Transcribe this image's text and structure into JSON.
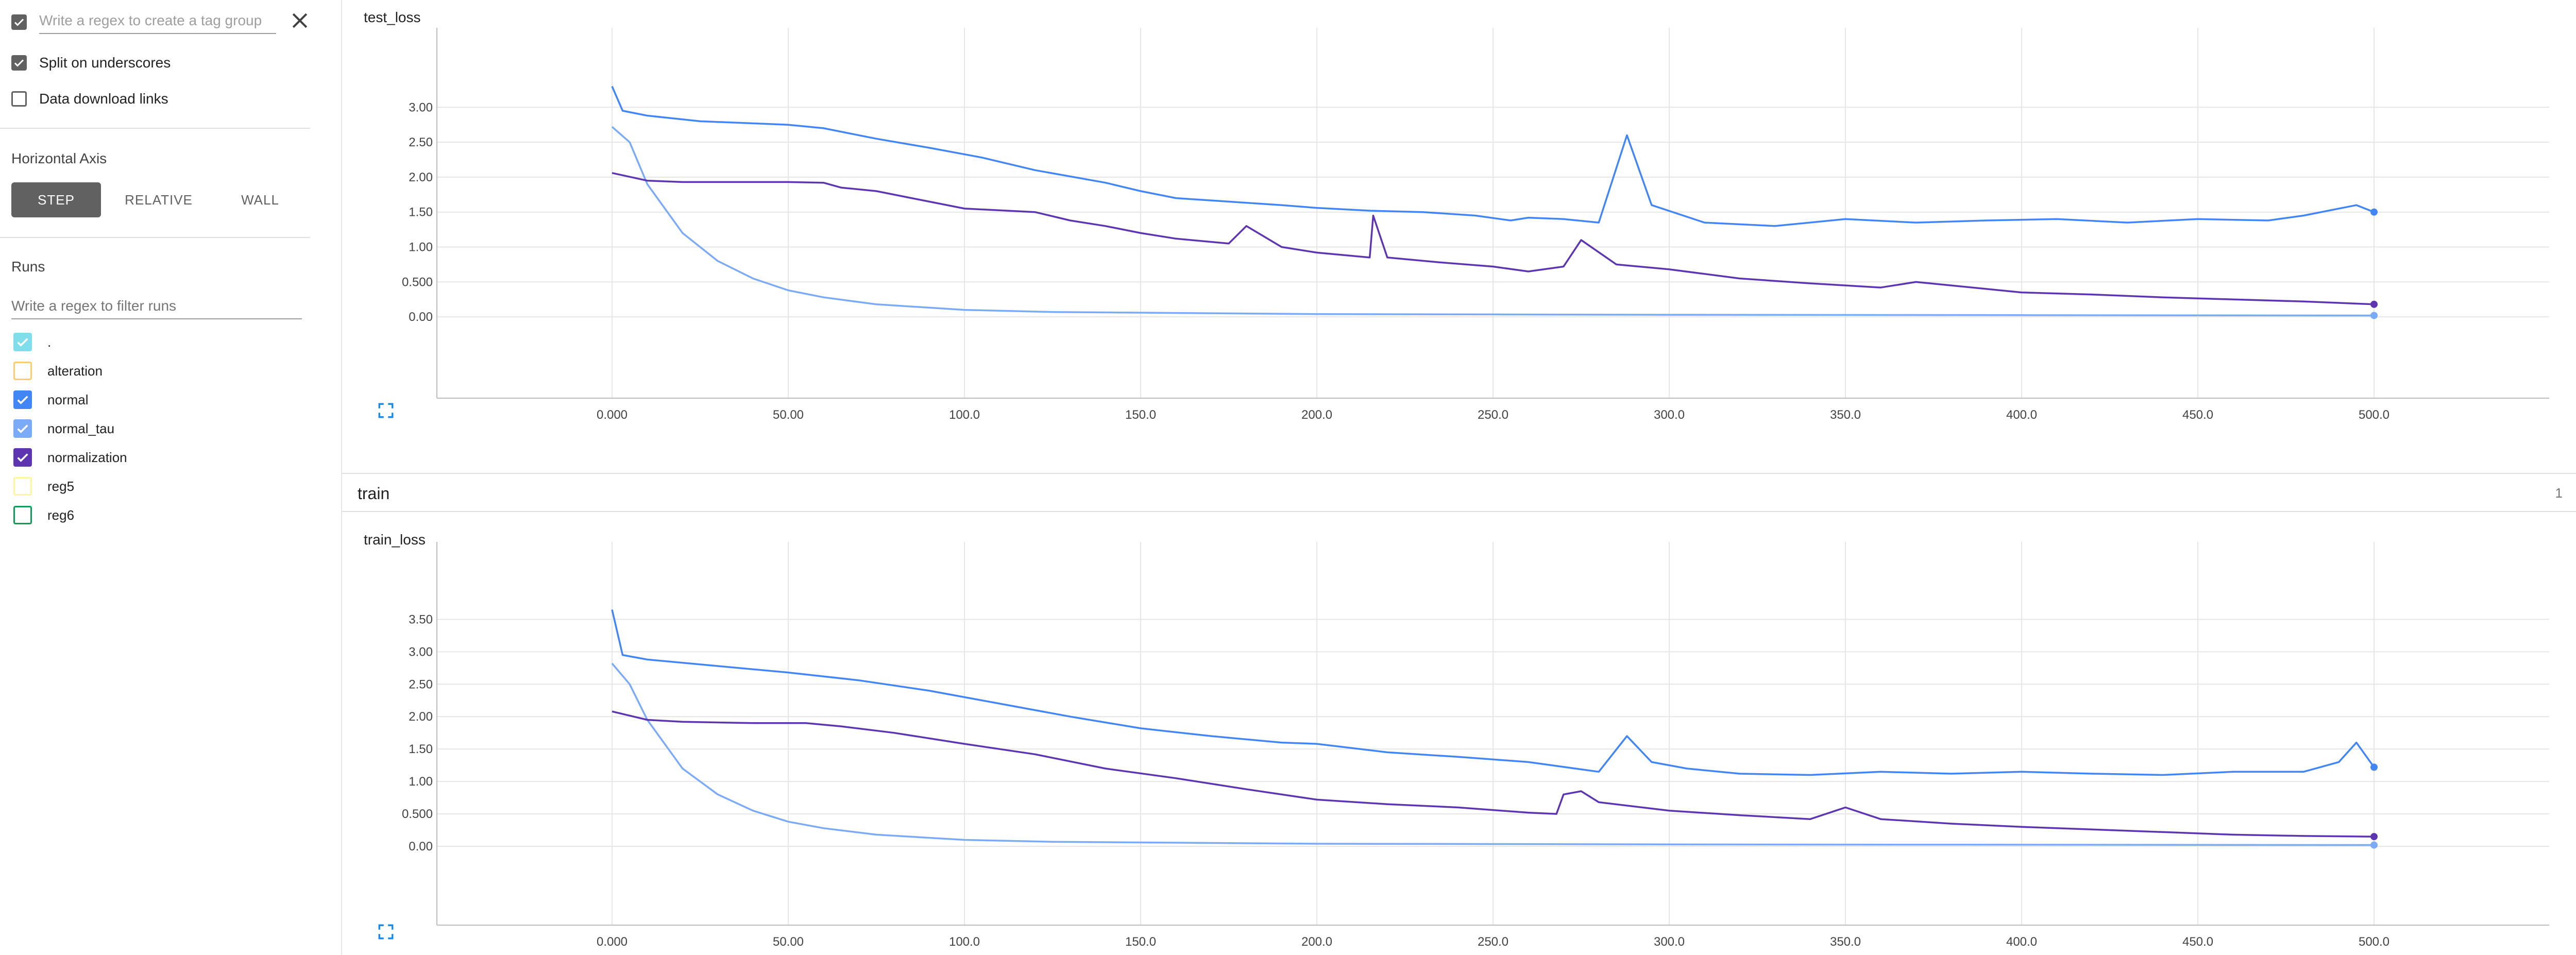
{
  "sidebar": {
    "tag_group": {
      "placeholder": "Write a regex to create a tag group",
      "checked": true
    },
    "split_underscores": {
      "label": "Split on underscores",
      "checked": true
    },
    "download_links": {
      "label": "Data download links",
      "checked": false
    },
    "horizontal_axis": {
      "title": "Horizontal Axis",
      "options": [
        "STEP",
        "RELATIVE",
        "WALL"
      ],
      "selected": "STEP"
    },
    "runs": {
      "title": "Runs",
      "filter_placeholder": "Write a regex to filter runs",
      "items": [
        {
          "label": ".",
          "color": "#80deea",
          "checked": true
        },
        {
          "label": "alteration",
          "color": "#ffca70",
          "checked": false
        },
        {
          "label": "normal",
          "color": "#4285f4",
          "checked": true
        },
        {
          "label": "normal_tau",
          "color": "#7baaf7",
          "checked": true
        },
        {
          "label": "normalization",
          "color": "#5e35b1",
          "checked": true
        },
        {
          "label": "reg5",
          "color": "#fff59d",
          "checked": false
        },
        {
          "label": "reg6",
          "color": "#0f9d58",
          "checked": false
        }
      ]
    }
  },
  "main": {
    "group": {
      "name": "train",
      "count": "1"
    }
  },
  "chart_data": [
    {
      "type": "line",
      "title": "test_loss",
      "xlabel": "",
      "ylabel": "",
      "xlim": [
        0,
        500
      ],
      "ylim": [
        -0.5,
        3.4
      ],
      "x_ticks": [
        "0.000",
        "50.00",
        "100.0",
        "150.0",
        "200.0",
        "250.0",
        "300.0",
        "350.0",
        "400.0",
        "450.0",
        "500.0"
      ],
      "y_ticks": [
        "0.00",
        "0.500",
        "1.00",
        "1.50",
        "2.00",
        "2.50",
        "3.00"
      ],
      "grid": true,
      "series": [
        {
          "color": "#4285f4",
          "x": [
            0,
            3,
            10,
            25,
            50,
            60,
            75,
            90,
            105,
            120,
            140,
            150,
            160,
            175,
            190,
            200,
            215,
            230,
            245,
            255,
            260,
            270,
            280,
            288,
            295,
            310,
            330,
            350,
            370,
            390,
            410,
            430,
            450,
            470,
            480,
            495,
            500
          ],
          "y": [
            3.3,
            2.95,
            2.88,
            2.8,
            2.75,
            2.7,
            2.55,
            2.42,
            2.28,
            2.1,
            1.92,
            1.8,
            1.7,
            1.65,
            1.6,
            1.56,
            1.52,
            1.5,
            1.45,
            1.38,
            1.42,
            1.4,
            1.35,
            2.6,
            1.6,
            1.35,
            1.3,
            1.4,
            1.35,
            1.38,
            1.4,
            1.35,
            1.4,
            1.38,
            1.45,
            1.6,
            1.5
          ]
        },
        {
          "color": "#7baaf7",
          "x": [
            0,
            5,
            10,
            20,
            30,
            40,
            50,
            60,
            75,
            100,
            125,
            150,
            200,
            250,
            300,
            400,
            500
          ],
          "y": [
            2.72,
            2.5,
            1.9,
            1.2,
            0.8,
            0.55,
            0.38,
            0.28,
            0.18,
            0.1,
            0.07,
            0.06,
            0.04,
            0.035,
            0.03,
            0.025,
            0.02
          ]
        },
        {
          "color": "#5e35b1",
          "x": [
            0,
            10,
            20,
            50,
            60,
            65,
            75,
            85,
            100,
            120,
            130,
            140,
            150,
            160,
            175,
            180,
            190,
            200,
            215,
            216,
            220,
            235,
            250,
            260,
            270,
            275,
            285,
            300,
            320,
            340,
            350,
            360,
            370,
            380,
            400,
            420,
            440,
            460,
            480,
            500
          ],
          "y": [
            2.06,
            1.95,
            1.93,
            1.93,
            1.92,
            1.85,
            1.8,
            1.7,
            1.55,
            1.5,
            1.38,
            1.3,
            1.2,
            1.12,
            1.05,
            1.3,
            1.0,
            0.92,
            0.85,
            1.45,
            0.85,
            0.78,
            0.72,
            0.65,
            0.72,
            1.1,
            0.75,
            0.68,
            0.55,
            0.48,
            0.45,
            0.42,
            0.5,
            0.45,
            0.35,
            0.32,
            0.28,
            0.25,
            0.22,
            0.18
          ]
        }
      ]
    },
    {
      "type": "line",
      "title": "train_loss",
      "xlabel": "",
      "ylabel": "",
      "xlim": [
        0,
        500
      ],
      "ylim": [
        -0.5,
        3.9
      ],
      "x_ticks": [
        "0.000",
        "50.00",
        "100.0",
        "150.0",
        "200.0",
        "250.0",
        "300.0",
        "350.0",
        "400.0",
        "450.0",
        "500.0"
      ],
      "y_ticks": [
        "0.00",
        "0.500",
        "1.00",
        "1.50",
        "2.00",
        "2.50",
        "3.00",
        "3.50"
      ],
      "grid": true,
      "series": [
        {
          "color": "#4285f4",
          "x": [
            0,
            3,
            10,
            30,
            50,
            70,
            90,
            110,
            130,
            150,
            170,
            190,
            200,
            220,
            240,
            260,
            280,
            288,
            295,
            305,
            320,
            340,
            360,
            380,
            400,
            420,
            440,
            460,
            480,
            490,
            495,
            500
          ],
          "y": [
            3.65,
            2.95,
            2.88,
            2.78,
            2.68,
            2.56,
            2.4,
            2.2,
            2.0,
            1.82,
            1.7,
            1.6,
            1.58,
            1.45,
            1.38,
            1.3,
            1.15,
            1.7,
            1.3,
            1.2,
            1.12,
            1.1,
            1.15,
            1.12,
            1.15,
            1.12,
            1.1,
            1.15,
            1.15,
            1.3,
            1.6,
            1.22
          ]
        },
        {
          "color": "#7baaf7",
          "x": [
            0,
            5,
            10,
            20,
            30,
            40,
            50,
            60,
            75,
            100,
            125,
            150,
            200,
            250,
            300,
            400,
            500
          ],
          "y": [
            2.82,
            2.5,
            1.95,
            1.2,
            0.8,
            0.55,
            0.38,
            0.28,
            0.18,
            0.1,
            0.07,
            0.06,
            0.04,
            0.035,
            0.03,
            0.025,
            0.02
          ]
        },
        {
          "color": "#5e35b1",
          "x": [
            0,
            10,
            20,
            40,
            55,
            65,
            80,
            100,
            120,
            140,
            160,
            180,
            200,
            220,
            240,
            260,
            268,
            270,
            275,
            280,
            300,
            320,
            340,
            350,
            360,
            380,
            400,
            420,
            440,
            460,
            480,
            500
          ],
          "y": [
            2.08,
            1.95,
            1.92,
            1.9,
            1.9,
            1.85,
            1.75,
            1.58,
            1.42,
            1.2,
            1.05,
            0.88,
            0.72,
            0.65,
            0.6,
            0.52,
            0.5,
            0.8,
            0.85,
            0.68,
            0.55,
            0.48,
            0.42,
            0.6,
            0.42,
            0.35,
            0.3,
            0.26,
            0.22,
            0.18,
            0.16,
            0.15
          ]
        }
      ]
    }
  ]
}
